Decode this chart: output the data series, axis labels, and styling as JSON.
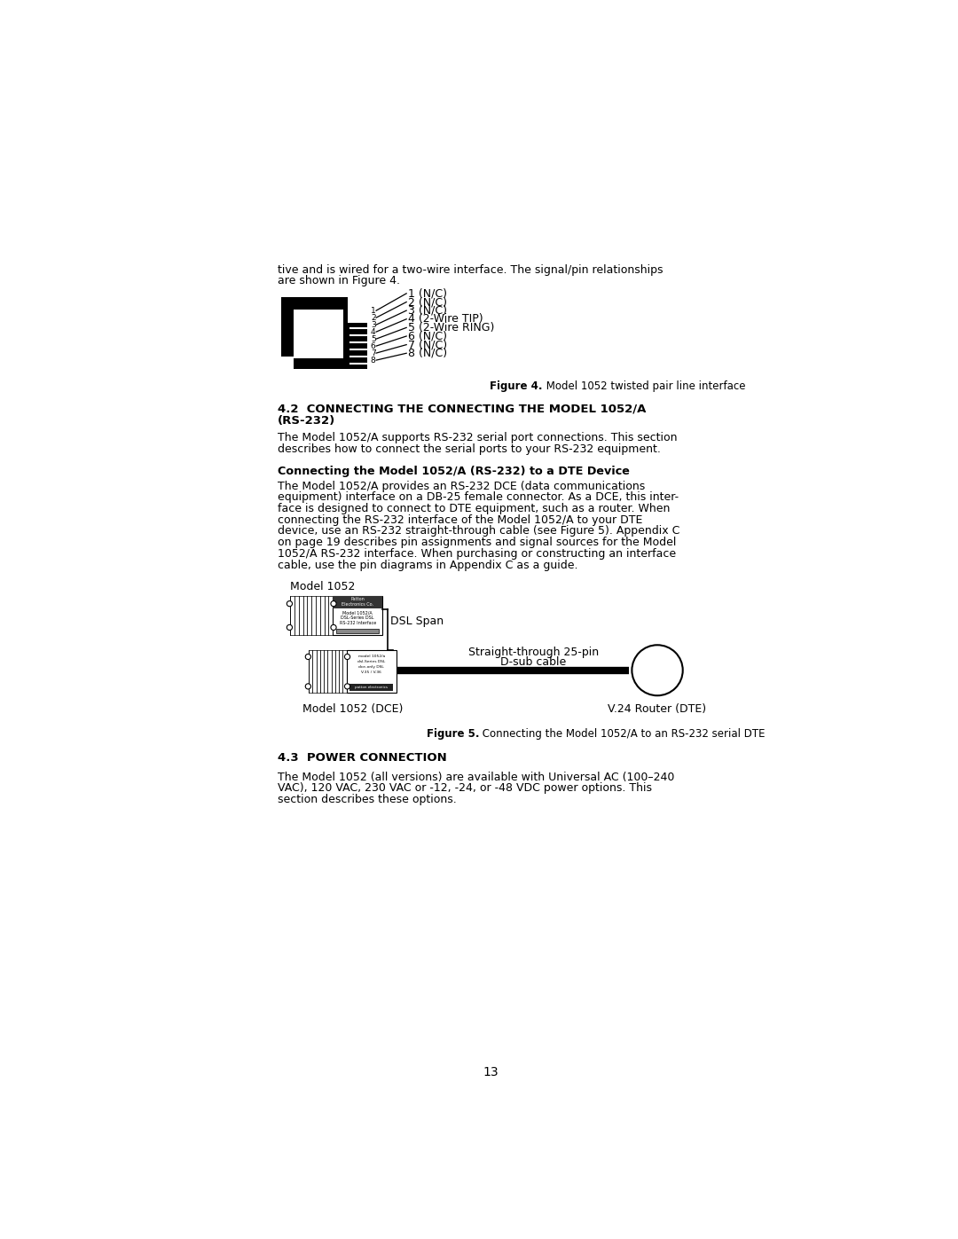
{
  "bg_color": "#ffffff",
  "page_width": 10.8,
  "page_height": 13.97,
  "pin_labels": [
    "1 (N/C)",
    "2 (N/C)",
    "3 (N/C)",
    "4 (2-Wire TIP)",
    "5 (2-Wire RING)",
    "6 (N/C)",
    "7 (N/C)",
    "8 (N/C)"
  ],
  "figure4_caption_bold": "Figure 4.",
  "figure4_caption_rest": " Model 1052 twisted pair line interface",
  "section_42_title_1": "4.2  CONNECTING THE CONNECTING THE MODEL 1052/A",
  "section_42_title_2": "(RS-232)",
  "section_42_para_1": "The Model 1052/A supports RS-232 serial port connections. This section",
  "section_42_para_2": "describes how to connect the serial ports to your RS-232 equipment.",
  "subsection_title": "Connecting the Model 1052/A (RS-232) to a DTE Device",
  "subsection_para": [
    "The Model 1052/A provides an RS-232 DCE (data communications",
    "equipment) interface on a DB-25 female connector. As a DCE, this inter-",
    "face is designed to connect to DTE equipment, such as a router. When",
    "connecting the RS-232 interface of the Model 1052/A to your DTE",
    "device, use an RS-232 straight-through cable (see Figure 5). Appendix C",
    "on page 19 describes pin assignments and signal sources for the Model",
    "1052/A RS-232 interface. When purchasing or constructing an interface",
    "cable, use the pin diagrams in Appendix C as a guide."
  ],
  "model1052_label": "Model 1052",
  "dsl_span_label": "DSL Span",
  "straight_through_label_1": "Straight-through 25-pin",
  "straight_through_label_2": "D-sub cable",
  "model1052_dce_label": "Model 1052 (DCE)",
  "v24_router_label": "V.24 Router (DTE)",
  "figure5_caption_bold": "Figure 5.",
  "figure5_caption_rest": " Connecting the Model 1052/A to an RS-232 serial DTE",
  "section_43_title_1": "4.3  POWER CONNECTION",
  "section_43_para": [
    "The Model 1052 (all versions) are available with Universal AC (100–240",
    "VAC), 120 VAC, 230 VAC or -12, -24, or -48 VDC power options. This",
    "section describes these options."
  ],
  "page_number": "13",
  "intro_line1": "tive and is wired for a two-wire interface. The signal/pin relationships",
  "intro_line2": "are shown in Figure 4."
}
